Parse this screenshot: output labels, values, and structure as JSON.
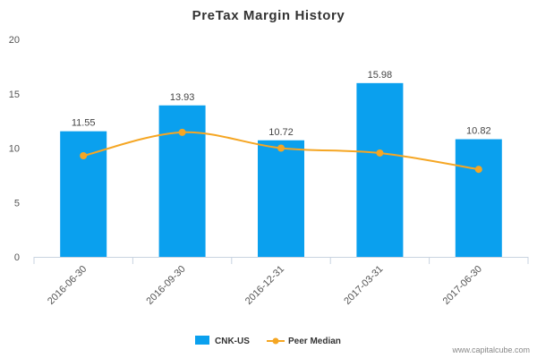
{
  "chart_data": {
    "type": "bar",
    "title": "PreTax Margin History",
    "categories": [
      "2016-06-30",
      "2016-09-30",
      "2016-12-31",
      "2017-03-31",
      "2017-06-30"
    ],
    "series": [
      {
        "name": "CNK-US",
        "kind": "bar",
        "color": "#0aa0ee",
        "values": [
          11.55,
          13.93,
          10.72,
          15.98,
          10.82
        ],
        "labels": [
          "11.55",
          "13.93",
          "10.72",
          "15.98",
          "10.82"
        ]
      },
      {
        "name": "Peer Median",
        "kind": "line",
        "color": "#f5a623",
        "values": [
          9.3,
          11.45,
          10.0,
          9.55,
          8.05
        ]
      }
    ],
    "ylim": [
      0,
      20
    ],
    "yticks": [
      0,
      5,
      10,
      15,
      20
    ],
    "grid": false,
    "legend_position": "bottom-center",
    "xlabel": "",
    "ylabel": ""
  },
  "credit": "www.capitalcube.com"
}
